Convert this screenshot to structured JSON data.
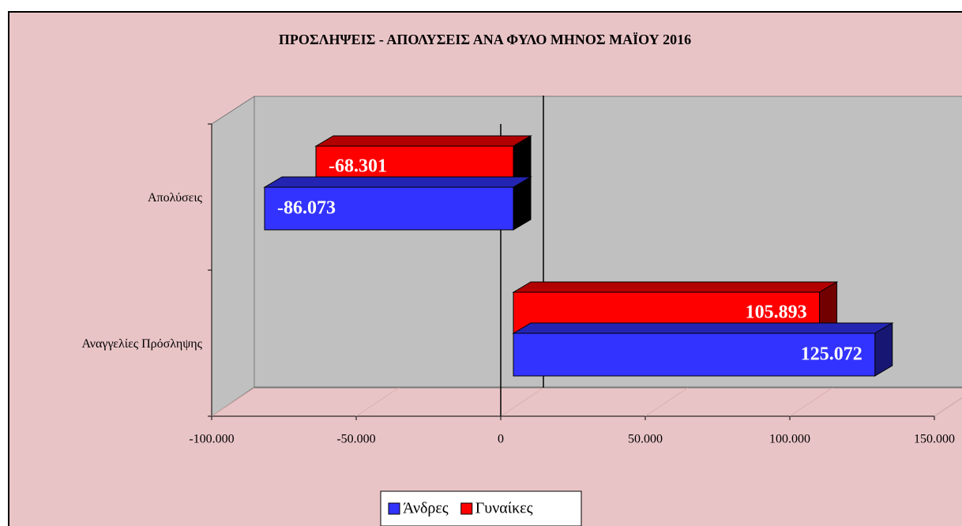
{
  "chart_data": {
    "type": "bar3d_horizontal",
    "title": "ΠΡΟΣΛΗΨΕΙΣ - ΑΠΟΛΥΣΕΙΣ ΑΝΑ ΦΥΛΟ ΜΗΝΟΣ ΜΑΪΟΥ 2016",
    "categories": [
      "Απολύσεις",
      "Αναγγελίες Πρόσληψης"
    ],
    "series": [
      {
        "name": "Άνδρες",
        "color": "#3333ff",
        "values": [
          -86073,
          125072
        ],
        "value_labels": [
          "-86.073",
          "125.072"
        ]
      },
      {
        "name": "Γυναίκες",
        "color": "#ff0000",
        "values": [
          -68301,
          105893
        ],
        "value_labels": [
          "-68.301",
          "105.893"
        ]
      }
    ],
    "xlim": [
      -100000,
      150000
    ],
    "xticks": [
      {
        "value": -100000,
        "label": "-100.000"
      },
      {
        "value": -50000,
        "label": "-50.000"
      },
      0,
      {
        "value": 50000,
        "label": "50.000"
      },
      {
        "value": 100000,
        "label": "100.000"
      },
      {
        "value": 150000,
        "label": "150.000"
      }
    ],
    "legend": "bottom"
  }
}
